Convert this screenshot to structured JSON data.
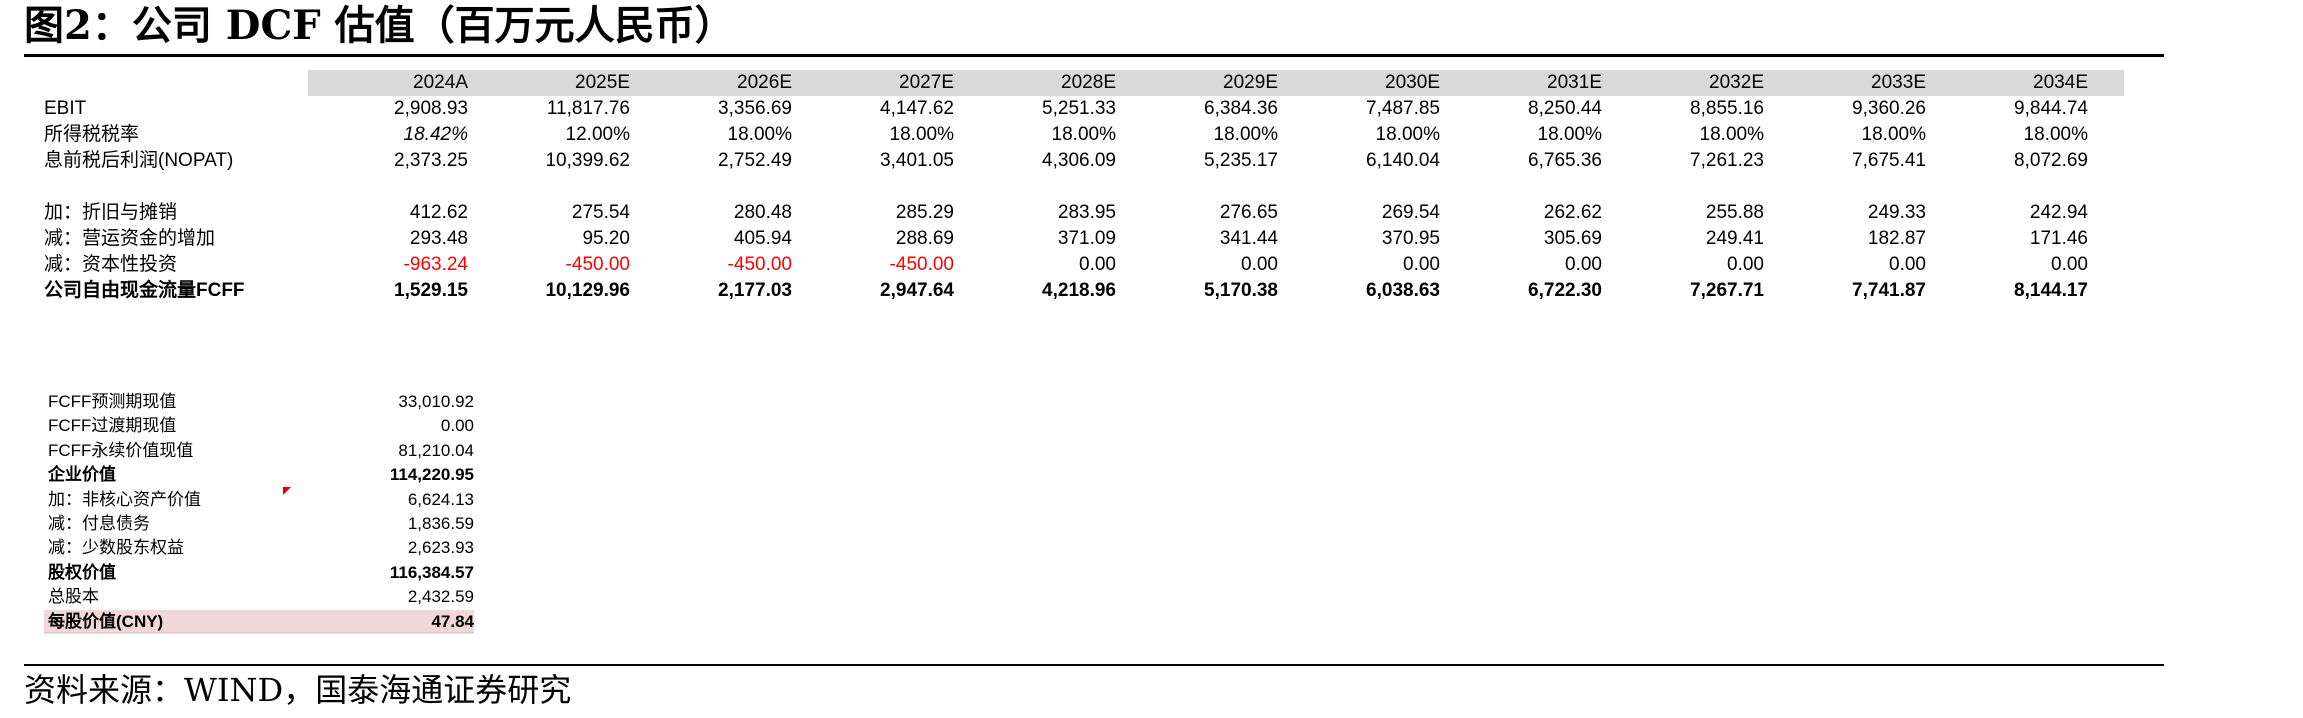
{
  "title": "图2：公司 DCF 估值（百万元人民币）",
  "source": "资料来源：WIND，国泰海通证券研究",
  "colors": {
    "header_band": "#d9d9d9",
    "negative": "#ff0000",
    "highlight": "#f2d7d9"
  },
  "table": {
    "years": [
      "2024A",
      "2025E",
      "2026E",
      "2027E",
      "2028E",
      "2029E",
      "2030E",
      "2031E",
      "2032E",
      "2033E",
      "2034E"
    ],
    "rows": [
      {
        "label": "EBIT",
        "values": [
          "2,908.93",
          "11,817.76",
          "3,356.69",
          "4,147.62",
          "5,251.33",
          "6,384.36",
          "7,487.85",
          "8,250.44",
          "8,855.16",
          "9,360.26",
          "9,844.74"
        ]
      },
      {
        "label": "所得税税率",
        "values": [
          "18.42%",
          "12.00%",
          "18.00%",
          "18.00%",
          "18.00%",
          "18.00%",
          "18.00%",
          "18.00%",
          "18.00%",
          "18.00%",
          "18.00%"
        ]
      },
      {
        "label": "息前税后利润(NOPAT)",
        "values": [
          "2,373.25",
          "10,399.62",
          "2,752.49",
          "3,401.05",
          "4,306.09",
          "5,235.17",
          "6,140.04",
          "6,765.36",
          "7,261.23",
          "7,675.41",
          "8,072.69"
        ]
      },
      {
        "label": "加：折旧与摊销",
        "values": [
          "412.62",
          "275.54",
          "280.48",
          "285.29",
          "283.95",
          "276.65",
          "269.54",
          "262.62",
          "255.88",
          "249.33",
          "242.94"
        ]
      },
      {
        "label": "减：营运资金的增加",
        "values": [
          "293.48",
          "95.20",
          "405.94",
          "288.69",
          "371.09",
          "341.44",
          "370.95",
          "305.69",
          "249.41",
          "182.87",
          "171.46"
        ]
      },
      {
        "label": "减：资本性投资",
        "values": [
          "-963.24",
          "-450.00",
          "-450.00",
          "-450.00",
          "0.00",
          "0.00",
          "0.00",
          "0.00",
          "0.00",
          "0.00",
          "0.00"
        ]
      },
      {
        "label": "公司自由现金流量FCFF",
        "values": [
          "1,529.15",
          "10,129.96",
          "2,177.03",
          "2,947.64",
          "4,218.96",
          "5,170.38",
          "6,038.63",
          "6,722.30",
          "7,267.71",
          "7,741.87",
          "8,144.17"
        ]
      }
    ]
  },
  "summary": [
    {
      "label": "FCFF预测期现值",
      "value": "33,010.92"
    },
    {
      "label": "FCFF过渡期现值",
      "value": "0.00"
    },
    {
      "label": "FCFF永续价值现值",
      "value": "81,210.04"
    },
    {
      "label": "企业价值",
      "value": "114,220.95"
    },
    {
      "label": "加：非核心资产价值",
      "value": "6,624.13"
    },
    {
      "label": "减：付息债务",
      "value": "1,836.59"
    },
    {
      "label": "减：少数股东权益",
      "value": "2,623.93"
    },
    {
      "label": "股权价值",
      "value": "116,384.57"
    },
    {
      "label": "总股本",
      "value": "2,432.59"
    },
    {
      "label": "每股价值(CNY)",
      "value": "47.84"
    }
  ]
}
